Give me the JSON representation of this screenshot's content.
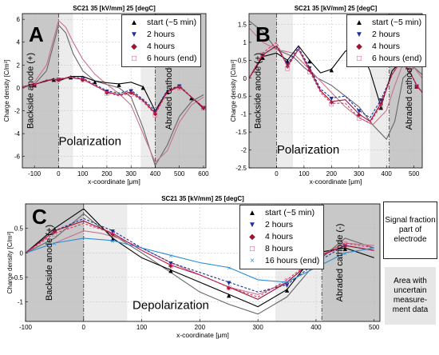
{
  "colors": {
    "start": "#000000",
    "h2": "#1f2f9f",
    "h4": "#9b1430",
    "h6": "#d8336a",
    "h8": "#d8336a",
    "h16": "#2a8fd4",
    "sim_dark": "#666666",
    "sim_pink": "#c7728d",
    "area_dark": "#c8c8c8",
    "area_light": "#ececec"
  },
  "side_notes": {
    "signal": "Signal fraction part of electrode",
    "uncertain": "Area with uncertain measure-ment data"
  },
  "chart_data": [
    {
      "panel": "A",
      "type": "line",
      "title": "SC21 35 [kV/mm] 25 [degC]",
      "xlabel": "x-coordinate [μm]",
      "ylabel": "Charge density [C/m³]",
      "xlim": [
        -150,
        610
      ],
      "ylim": [
        -7,
        6.5
      ],
      "xticks": [
        -100,
        0,
        100,
        200,
        300,
        400,
        500,
        600
      ],
      "yticks": [
        -6,
        -4,
        -2,
        0,
        2,
        4,
        6
      ],
      "grid": true,
      "regions": {
        "dark": [
          [
            -150,
            0
          ],
          [
            400,
            610
          ]
        ],
        "light": [
          [
            0,
            60
          ],
          [
            340,
            400
          ]
        ]
      },
      "annotations": {
        "anode": "Backside anode (+)",
        "cathode": "Abraded cathode (-)",
        "process": "Polarization"
      },
      "series": [
        {
          "name": "start (~5 min)",
          "key": "start",
          "marker": "triangle-up",
          "x": [
            -150,
            -100,
            -50,
            -20,
            0,
            50,
            100,
            150,
            200,
            250,
            300,
            350,
            400,
            450,
            500,
            550,
            600
          ],
          "y": [
            0.1,
            0.3,
            0.6,
            0.8,
            0.6,
            1.0,
            1.0,
            0.6,
            0.45,
            0.35,
            0.5,
            0.1,
            -2.0,
            -0.3,
            0.1,
            -0.8,
            -1.8
          ]
        },
        {
          "name": "2 hours",
          "key": "h2",
          "marker": "triangle-down",
          "x": [
            -150,
            -100,
            -50,
            0,
            50,
            100,
            150,
            200,
            250,
            300,
            350,
            400,
            450,
            500,
            550,
            600
          ],
          "y": [
            0.1,
            0.3,
            0.65,
            0.75,
            0.95,
            0.85,
            0.3,
            -0.25,
            -0.45,
            -0.2,
            -1.0,
            -2.0,
            -0.2,
            0.2,
            -0.8,
            -1.7
          ]
        },
        {
          "name": "4 hours",
          "key": "h4",
          "marker": "diamond",
          "x": [
            -150,
            -100,
            -50,
            0,
            50,
            100,
            150,
            200,
            250,
            300,
            350,
            400,
            450,
            500,
            550,
            600
          ],
          "y": [
            0.1,
            0.3,
            0.65,
            0.75,
            0.9,
            0.75,
            0.2,
            -0.35,
            -0.6,
            -0.35,
            -1.1,
            -2.2,
            -0.3,
            0.15,
            -0.8,
            -1.7
          ]
        },
        {
          "name": "6 hours (end)",
          "key": "h6",
          "marker": "square",
          "x": [
            -150,
            -100,
            -50,
            0,
            50,
            100,
            150,
            200,
            250,
            300,
            350,
            400,
            450,
            500,
            550,
            600
          ],
          "y": [
            0.1,
            0.3,
            0.7,
            0.8,
            0.95,
            0.8,
            0.25,
            -0.4,
            -0.7,
            -0.45,
            -1.2,
            -2.3,
            -0.4,
            0.1,
            -0.8,
            -1.7
          ]
        }
      ],
      "sim_series": [
        {
          "key": "sim_dark",
          "x": [
            -150,
            -100,
            -50,
            0,
            30,
            60,
            100,
            150,
            200,
            250,
            300,
            350,
            400,
            450,
            500,
            550,
            600
          ],
          "y": [
            0.0,
            0.3,
            1.5,
            5.5,
            4.8,
            3.0,
            1.5,
            0.6,
            0.3,
            0.0,
            -0.8,
            -3.5,
            -6.8,
            -5.0,
            -2.5,
            -1.2,
            -0.6
          ]
        },
        {
          "key": "sim_pink",
          "x": [
            -150,
            -100,
            -50,
            0,
            30,
            60,
            100,
            150,
            200,
            250,
            300,
            350,
            400,
            450,
            500,
            550,
            600
          ],
          "y": [
            0.0,
            0.5,
            2.0,
            5.9,
            5.3,
            4.0,
            2.5,
            1.2,
            0.3,
            -0.5,
            -1.5,
            -4.0,
            -6.5,
            -5.5,
            -3.0,
            -1.5,
            -0.8
          ]
        }
      ]
    },
    {
      "panel": "B",
      "type": "line",
      "title": "SC21 35 [kV/mm] 25 [degC]",
      "xlabel": "x-coordinate [μm]",
      "ylabel": "Charge density [C/m³]",
      "xlim": [
        -100,
        530
      ],
      "ylim": [
        -2.5,
        1.8
      ],
      "xticks": [
        0,
        100,
        200,
        300,
        400,
        500
      ],
      "yticks": [
        -2.5,
        -2,
        -1.5,
        -1,
        -0.5,
        0,
        0.5,
        1,
        1.5
      ],
      "grid": true,
      "regions": {
        "dark": [
          [
            -100,
            0
          ],
          [
            410,
            530
          ]
        ],
        "light": [
          [
            0,
            60
          ],
          [
            340,
            410
          ]
        ]
      },
      "annotations": {
        "anode": "Backside anode (+)",
        "cathode": "Abraded cathode (-)",
        "process": "Polarization"
      },
      "series": [
        {
          "name": "start (~5 min)",
          "key": "start",
          "marker": "triangle-up",
          "x": [
            -100,
            -50,
            0,
            40,
            80,
            120,
            160,
            200,
            250,
            300,
            340,
            380,
            420,
            450,
            480,
            510,
            530
          ],
          "y": [
            0.0,
            0.6,
            0.7,
            0.5,
            0.9,
            0.5,
            0.15,
            0.25,
            0.75,
            0.9,
            0.2,
            -0.8,
            0.2,
            0.45,
            0.25,
            -0.2,
            -0.4
          ]
        },
        {
          "name": "2 hours",
          "key": "h2",
          "marker": "triangle-down",
          "x": [
            -100,
            -50,
            0,
            40,
            80,
            120,
            160,
            200,
            250,
            300,
            340,
            380,
            420,
            450,
            480,
            510,
            530
          ],
          "y": [
            0.0,
            0.65,
            0.9,
            0.4,
            0.85,
            0.3,
            -0.3,
            -0.55,
            -0.5,
            -0.9,
            -1.1,
            -0.6,
            0.1,
            0.45,
            0.25,
            -0.2,
            -0.4
          ]
        },
        {
          "name": "4 hours",
          "key": "h4",
          "marker": "diamond",
          "x": [
            -100,
            -50,
            0,
            40,
            80,
            120,
            160,
            200,
            250,
            300,
            340,
            380,
            420,
            450,
            480,
            510,
            530
          ],
          "y": [
            0.0,
            0.65,
            0.9,
            0.35,
            0.8,
            0.25,
            -0.35,
            -0.65,
            -0.6,
            -1.0,
            -1.2,
            -0.7,
            0.1,
            0.45,
            0.25,
            -0.2,
            -0.4
          ]
        },
        {
          "name": "6 hours (end)",
          "key": "h6",
          "marker": "square",
          "x": [
            -100,
            -50,
            0,
            40,
            80,
            120,
            160,
            200,
            250,
            300,
            340,
            380,
            420,
            450,
            480,
            510,
            530
          ],
          "y": [
            0.0,
            0.7,
            1.0,
            0.3,
            0.8,
            0.2,
            -0.4,
            -0.7,
            -0.7,
            -1.1,
            -1.25,
            -0.75,
            0.1,
            0.45,
            0.25,
            -0.2,
            -0.4
          ]
        }
      ],
      "sim_series": [
        {
          "key": "sim_dark",
          "x": [
            -100,
            -50,
            0,
            30,
            60,
            100,
            150,
            200,
            250,
            300,
            350,
            400,
            430,
            460,
            500,
            530
          ],
          "y": [
            1.6,
            1.3,
            0.8,
            0.7,
            0.6,
            0.3,
            0.0,
            -0.2,
            -0.5,
            -0.8,
            -1.3,
            -1.7,
            -1.2,
            0.0,
            0.3,
            0.1
          ]
        },
        {
          "key": "sim_pink",
          "x": [
            -100,
            -50,
            0,
            30,
            60,
            100,
            150,
            200,
            250,
            300,
            350,
            400,
            430,
            460,
            500,
            530
          ],
          "y": [
            1.4,
            1.0,
            0.8,
            0.75,
            0.7,
            0.4,
            0.0,
            -0.4,
            -0.8,
            -1.1,
            -1.3,
            -0.9,
            -0.2,
            0.4,
            0.3,
            0.0
          ]
        }
      ]
    },
    {
      "panel": "C",
      "type": "line",
      "title": "SC21 35 [kV/mm] 25 [degC]",
      "xlabel": "x-coordinate [μm]",
      "ylabel": "Charge density [C/m³]",
      "xlim": [
        -100,
        510
      ],
      "ylim": [
        -1.4,
        1.0
      ],
      "xticks": [
        -100,
        0,
        100,
        200,
        300,
        400,
        500
      ],
      "yticks": [
        -1,
        -0.5,
        0,
        0.5
      ],
      "grid": true,
      "regions": {
        "dark": [
          [
            -100,
            0
          ],
          [
            410,
            510
          ]
        ],
        "light": [
          [
            0,
            75
          ],
          [
            330,
            410
          ]
        ]
      },
      "annotations": {
        "anode": "Backside anode (+)",
        "cathode": "Abraded cathode (-)",
        "process": "Depolarization"
      },
      "series": [
        {
          "name": "start (~5 min)",
          "key": "start",
          "marker": "triangle-up",
          "x": [
            -100,
            -50,
            0,
            50,
            100,
            150,
            200,
            250,
            300,
            350,
            400,
            450,
            500
          ],
          "y": [
            0.0,
            0.5,
            0.9,
            0.3,
            -0.1,
            -0.35,
            -0.6,
            -0.85,
            -1.1,
            -0.75,
            0.0,
            0.1,
            -0.1
          ]
        },
        {
          "name": "2 hours",
          "key": "h2",
          "marker": "triangle-down",
          "x": [
            -100,
            -50,
            0,
            50,
            100,
            150,
            200,
            250,
            300,
            350,
            400,
            450,
            500
          ],
          "y": [
            0.0,
            0.45,
            0.7,
            0.45,
            0.1,
            -0.2,
            -0.4,
            -0.6,
            -0.8,
            -0.65,
            -0.2,
            0.15,
            0.05
          ]
        },
        {
          "name": "4 hours",
          "key": "h4",
          "marker": "diamond",
          "x": [
            -100,
            -50,
            0,
            50,
            100,
            150,
            200,
            250,
            300,
            350,
            400,
            450,
            500
          ],
          "y": [
            0.0,
            0.45,
            0.65,
            0.4,
            0.05,
            -0.25,
            -0.45,
            -0.7,
            -0.95,
            -0.6,
            -0.1,
            0.15,
            0.05
          ]
        },
        {
          "name": "8 hours",
          "key": "h8",
          "marker": "square",
          "x": [
            -100,
            -50,
            0,
            50,
            100,
            150,
            200,
            250,
            300,
            350,
            400,
            450,
            500
          ],
          "y": [
            0.0,
            0.4,
            0.6,
            0.4,
            0.05,
            -0.25,
            -0.45,
            -0.7,
            -0.9,
            -0.55,
            -0.1,
            0.2,
            0.1
          ]
        },
        {
          "name": "16 hours (end)",
          "key": "h16",
          "marker": "x",
          "x": [
            -100,
            -50,
            0,
            50,
            100,
            150,
            200,
            250,
            300,
            350,
            400,
            450,
            500
          ],
          "y": [
            0.0,
            0.2,
            0.3,
            0.25,
            0.1,
            -0.05,
            -0.2,
            -0.3,
            -0.55,
            -0.6,
            -0.3,
            0.0,
            0.1
          ]
        }
      ],
      "sim_series": [
        {
          "key": "sim_dark",
          "x": [
            -100,
            -50,
            0,
            30,
            60,
            100,
            150,
            200,
            250,
            300,
            350,
            400,
            450,
            500
          ],
          "y": [
            0.0,
            0.3,
            0.8,
            0.5,
            0.3,
            0.0,
            -0.4,
            -0.8,
            -1.05,
            -1.25,
            -0.9,
            -0.2,
            0.3,
            0.1
          ]
        },
        {
          "key": "sim_pink",
          "x": [
            -100,
            -50,
            0,
            30,
            60,
            100,
            150,
            200,
            250,
            300,
            350,
            400,
            450,
            500
          ],
          "y": [
            0.0,
            0.2,
            0.45,
            0.4,
            0.3,
            0.1,
            -0.2,
            -0.45,
            -0.7,
            -0.85,
            -0.6,
            -0.1,
            0.2,
            0.15
          ]
        }
      ]
    }
  ]
}
